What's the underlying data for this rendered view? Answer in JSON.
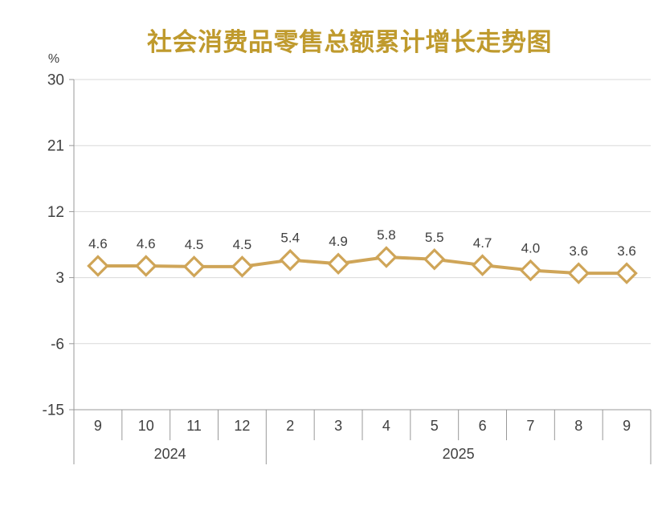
{
  "chart_data": {
    "type": "line",
    "title": "社会消费品零售总额累计增长走势图",
    "unit_label": "%",
    "categories": [
      "9",
      "10",
      "11",
      "12",
      "2",
      "3",
      "4",
      "5",
      "6",
      "7",
      "8",
      "9"
    ],
    "year_groups": [
      {
        "label": "2024",
        "span": 4
      },
      {
        "label": "2025",
        "span": 8
      }
    ],
    "values": [
      4.6,
      4.6,
      4.5,
      4.5,
      5.4,
      4.9,
      5.8,
      5.5,
      4.7,
      4.0,
      3.6,
      3.6
    ],
    "labels": [
      "4.6",
      "4.6",
      "4.5",
      "4.5",
      "5.4",
      "4.9",
      "5.8",
      "5.5",
      "4.7",
      "4.0",
      "3.6",
      "3.6"
    ],
    "y_ticks": [
      30,
      21,
      12,
      3,
      -6,
      -15
    ],
    "ylim": [
      -15,
      30
    ],
    "grid": true,
    "legend": "none",
    "marker": "diamond",
    "title_color": "#BF9A2D",
    "line_color": "#CFA558",
    "marker_fill": "#FFFFFF",
    "label_color": "#404040",
    "grid_color": "#D9D9D9",
    "axis_color": "#999999"
  }
}
